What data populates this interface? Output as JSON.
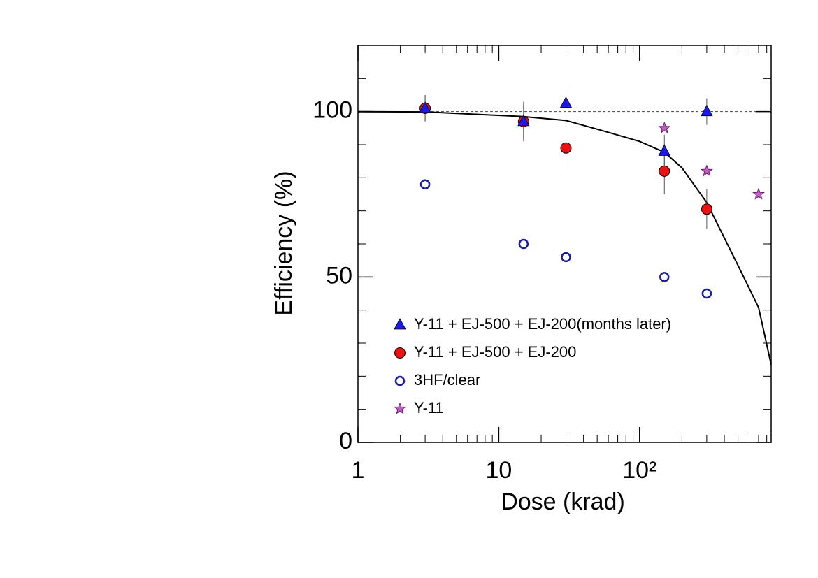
{
  "chart_data": {
    "type": "scatter",
    "xlabel": "Dose (krad)",
    "ylabel": "Efficiency (%)",
    "xscale": "log",
    "xlim": [
      1,
      860
    ],
    "ylim": [
      0,
      120
    ],
    "xticks": [
      1,
      10,
      {
        "value": 100,
        "label": "10²"
      }
    ],
    "yticks": [
      0,
      50,
      100
    ],
    "yminor_ticks": [
      10,
      20,
      30,
      40,
      60,
      70,
      80,
      90,
      110
    ],
    "xminor_ticks": [
      2,
      3,
      4,
      5,
      6,
      7,
      8,
      9,
      20,
      30,
      40,
      50,
      60,
      70,
      80,
      90,
      200,
      300,
      400,
      500,
      600,
      700,
      800
    ],
    "reference_line": 100,
    "legend": "lower left",
    "series": [
      {
        "name": "3HF/clear",
        "marker": "open-circle",
        "color": "#1c1c9c",
        "x": [
          3,
          15,
          30,
          150,
          300
        ],
        "values": [
          78,
          60,
          56,
          50,
          45
        ]
      },
      {
        "name": "Y-11",
        "marker": "star",
        "color": "#c060c0",
        "x": [
          150,
          300,
          700
        ],
        "values": [
          95,
          82,
          75
        ]
      },
      {
        "name": "Y-11 + EJ-500 + EJ-200",
        "marker": "circle",
        "color": "#ee1111",
        "x": [
          3,
          15,
          30,
          150,
          300
        ],
        "values": [
          101,
          97,
          89,
          82,
          70.5
        ],
        "errors": [
          4,
          6,
          6,
          7,
          6
        ]
      },
      {
        "name": "Y-11 + EJ-500 + EJ-200(months later)",
        "marker": "triangle",
        "color": "#1a1aee",
        "x": [
          3,
          15,
          30,
          150,
          300
        ],
        "values": [
          101,
          97,
          102.5,
          88,
          100
        ],
        "errors": [
          4,
          5,
          5,
          5,
          4
        ]
      }
    ],
    "fit": {
      "color": "#000000",
      "x": [
        1,
        3,
        15,
        30,
        50,
        100,
        150,
        200,
        300,
        500,
        700,
        860
      ],
      "values": [
        100,
        99.9,
        98.5,
        97.3,
        94.7,
        91,
        87.7,
        83,
        72.5,
        53.5,
        40.8,
        23.5
      ]
    },
    "legend_order": [
      3,
      2,
      0,
      1
    ]
  }
}
